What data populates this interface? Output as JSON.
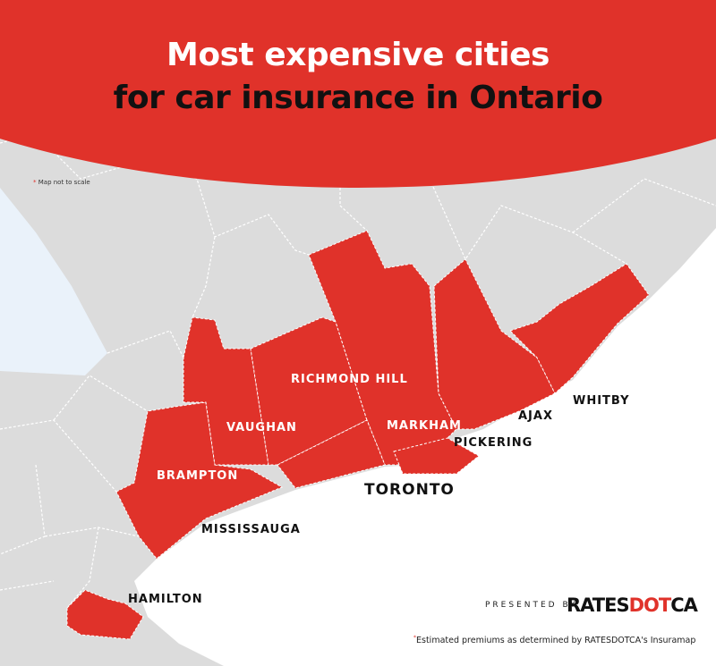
{
  "title": {
    "line1": "Most expensive cities",
    "line2": "for car insurance in Ontario"
  },
  "note": {
    "marker": "*",
    "text": "Map not to scale"
  },
  "cities": {
    "richmond_hill": "RICHMOND HILL",
    "vaughan": "VAUGHAN",
    "markham": "MARKHAM",
    "brampton": "BRAMPTON",
    "toronto": "TORONTO",
    "pickering": "PICKERING",
    "ajax": "AJAX",
    "whitby": "WHITBY",
    "mississauga": "MISSISSAUGA",
    "hamilton": "HAMILTON"
  },
  "presented": {
    "label": "PRESENTED BY",
    "logo_a": "RATES",
    "logo_b": "DOT",
    "logo_c": "CA"
  },
  "footnote": {
    "marker": "*",
    "text": "Estimated premiums as determined by RATESDOTCA's Insuramap"
  },
  "colors": {
    "highlight": "#e0322a",
    "land": "#dcdcdc",
    "lake_inland": "#eaf2fa",
    "water": "#ffffff"
  }
}
